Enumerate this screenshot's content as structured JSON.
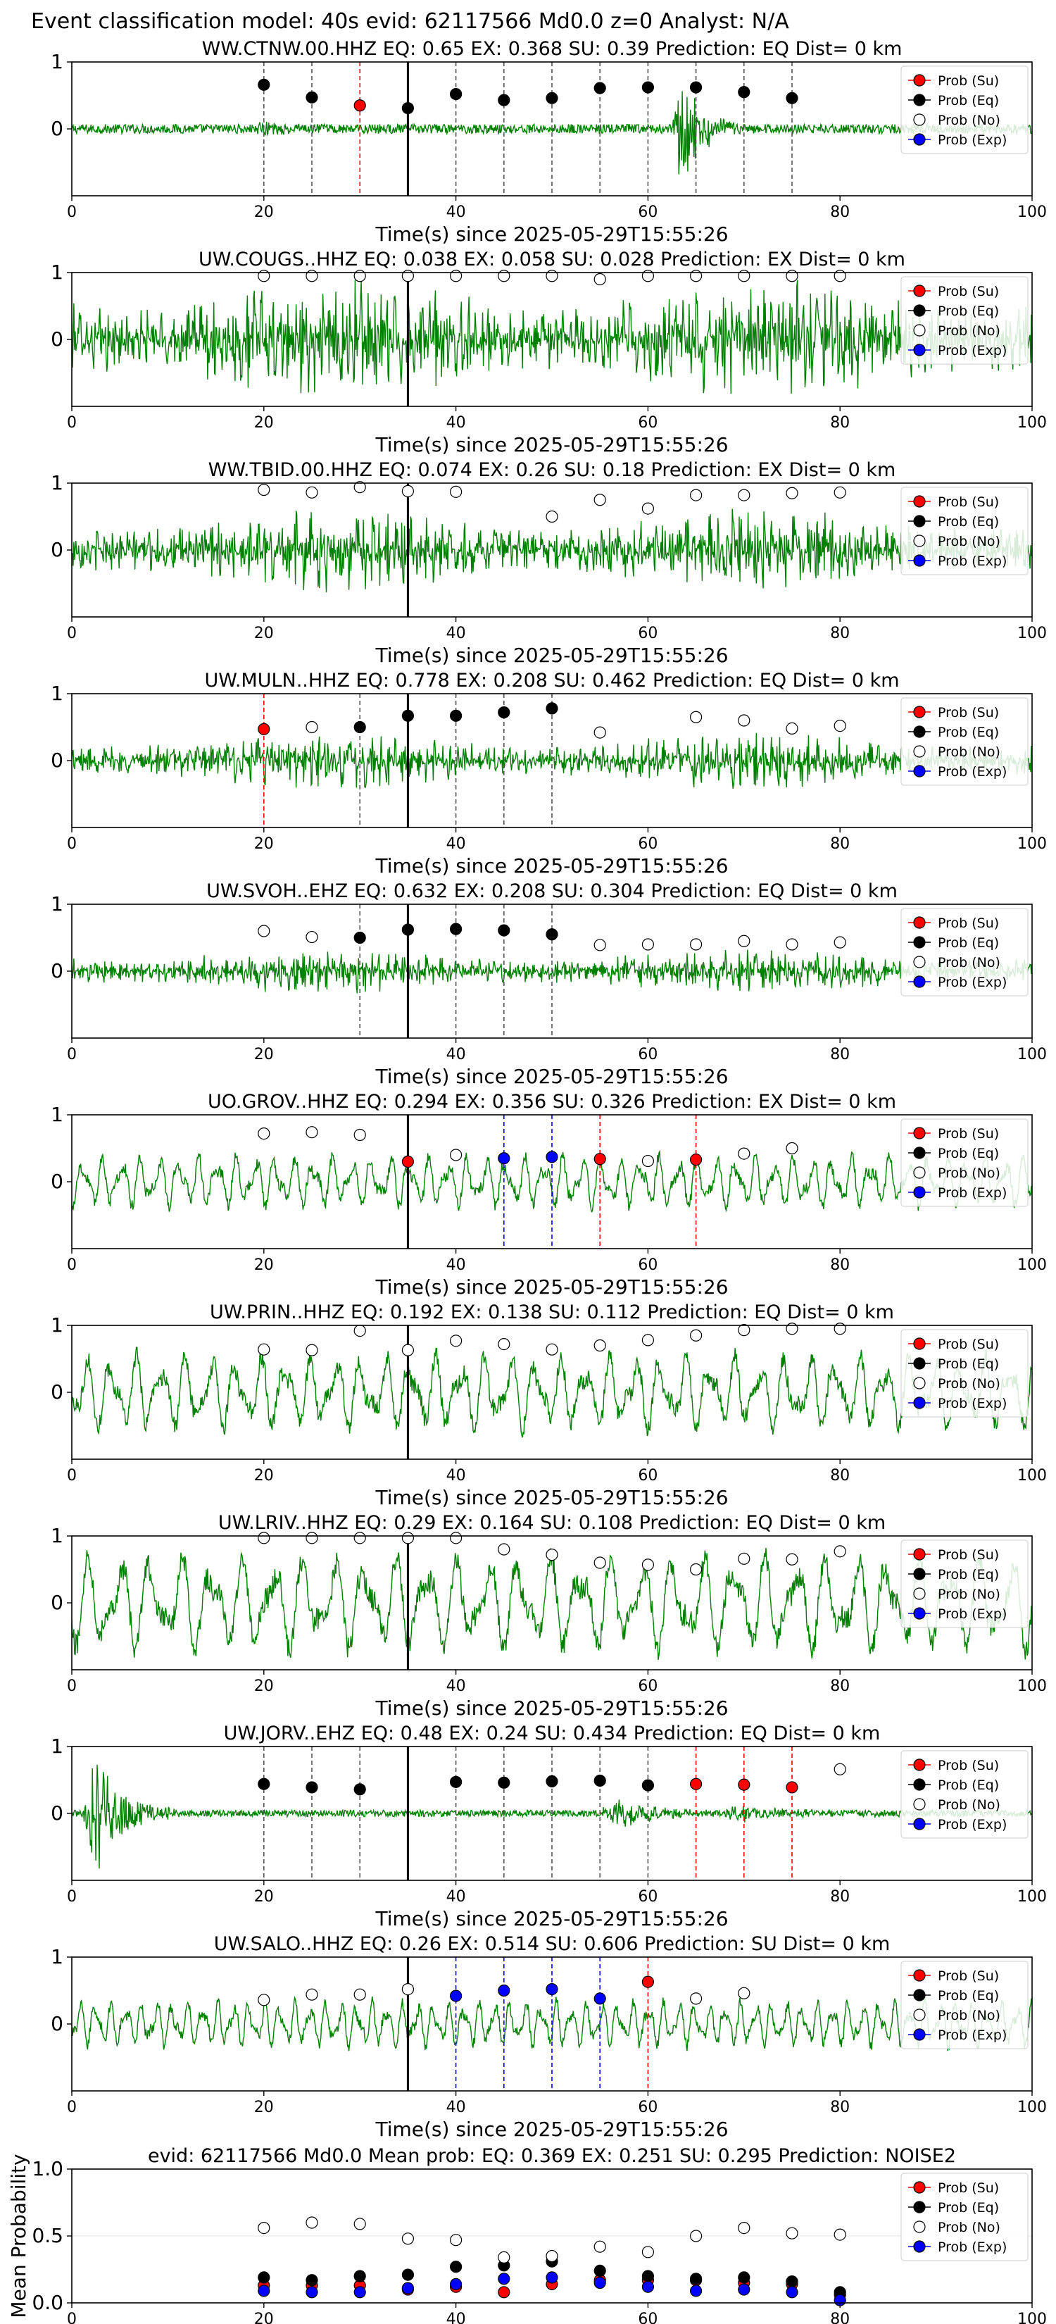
{
  "suptitle": "Event classification model: 40s evid: 62117566 Md0.0 z=0 Analyst: N/A",
  "colors": {
    "trace": "#008000",
    "su": "#ff0000",
    "eq": "#000000",
    "no": "#ffffff",
    "exp": "#0000ff"
  },
  "legend": [
    "Prob (Su)",
    "Prob (Eq)",
    "Prob (No)",
    "Prob (Exp)"
  ],
  "chart_data": [
    {
      "type": "line",
      "title": "WW.CTNW.00.HHZ   EQ: 0.65  EX: 0.368  SU: 0.39   Prediction: EQ    Dist= 0 km",
      "xlabel": "Time(s) since 2025-05-29T15:55:26",
      "ylabel": "",
      "xlim": [
        0,
        100
      ],
      "ylim": [
        -1,
        1
      ],
      "xticks": [
        0,
        20,
        40,
        60,
        80,
        100
      ],
      "yticks": [
        0,
        1
      ],
      "grid": false,
      "legend_position": "top-right",
      "trace": {
        "style": "burst",
        "amp": 0.07,
        "period": 1.5,
        "bursts": [
          [
            63.5,
            0.95,
            2.5
          ],
          [
            20,
            0.05,
            5
          ]
        ]
      },
      "points": [
        {
          "x": 20,
          "y": 0.66,
          "c": "eq"
        },
        {
          "x": 25,
          "y": 0.47,
          "c": "eq"
        },
        {
          "x": 30,
          "y": 0.35,
          "c": "su"
        },
        {
          "x": 35,
          "y": 0.31,
          "c": "eq"
        },
        {
          "x": 40,
          "y": 0.52,
          "c": "eq"
        },
        {
          "x": 45,
          "y": 0.43,
          "c": "eq"
        },
        {
          "x": 50,
          "y": 0.46,
          "c": "eq"
        },
        {
          "x": 55,
          "y": 0.61,
          "c": "eq"
        },
        {
          "x": 60,
          "y": 0.62,
          "c": "eq"
        },
        {
          "x": 65,
          "y": 0.62,
          "c": "eq"
        },
        {
          "x": 70,
          "y": 0.55,
          "c": "eq"
        },
        {
          "x": 75,
          "y": 0.46,
          "c": "eq"
        }
      ]
    },
    {
      "type": "line",
      "title": "UW.COUGS..HHZ   EQ: 0.038  EX: 0.058  SU: 0.028   Prediction: EX    Dist= 0 km",
      "xlabel": "Time(s) since 2025-05-29T15:55:26",
      "ylabel": "",
      "xlim": [
        0,
        100
      ],
      "ylim": [
        -1,
        1
      ],
      "xticks": [
        0,
        20,
        40,
        60,
        80,
        100
      ],
      "yticks": [
        0,
        1
      ],
      "grid": false,
      "legend_position": "top-right",
      "trace": {
        "style": "noise",
        "amp": 0.95,
        "period": 0.7
      },
      "points": [
        {
          "x": 20,
          "y": 0.95,
          "c": "no"
        },
        {
          "x": 25,
          "y": 0.95,
          "c": "no"
        },
        {
          "x": 30,
          "y": 0.95,
          "c": "no"
        },
        {
          "x": 35,
          "y": 0.95,
          "c": "no"
        },
        {
          "x": 40,
          "y": 0.95,
          "c": "no"
        },
        {
          "x": 45,
          "y": 0.95,
          "c": "no"
        },
        {
          "x": 50,
          "y": 0.95,
          "c": "no"
        },
        {
          "x": 55,
          "y": 0.9,
          "c": "no"
        },
        {
          "x": 60,
          "y": 0.95,
          "c": "no"
        },
        {
          "x": 65,
          "y": 0.95,
          "c": "no"
        },
        {
          "x": 70,
          "y": 0.95,
          "c": "no"
        },
        {
          "x": 75,
          "y": 0.95,
          "c": "no"
        },
        {
          "x": 80,
          "y": 0.95,
          "c": "no"
        }
      ]
    },
    {
      "type": "line",
      "title": "WW.TBID.00.HHZ   EQ: 0.074  EX: 0.26  SU: 0.18   Prediction: EX    Dist= 0 km",
      "xlabel": "Time(s) since 2025-05-29T15:55:26",
      "ylabel": "",
      "xlim": [
        0,
        100
      ],
      "ylim": [
        -1,
        1
      ],
      "xticks": [
        0,
        20,
        40,
        60,
        80,
        100
      ],
      "yticks": [
        0,
        1
      ],
      "grid": false,
      "legend_position": "top-right",
      "trace": {
        "style": "noise",
        "amp": 0.65,
        "period": 0.8
      },
      "points": [
        {
          "x": 20,
          "y": 0.9,
          "c": "no"
        },
        {
          "x": 25,
          "y": 0.86,
          "c": "no"
        },
        {
          "x": 30,
          "y": 0.94,
          "c": "no"
        },
        {
          "x": 35,
          "y": 0.88,
          "c": "no"
        },
        {
          "x": 40,
          "y": 0.87,
          "c": "no"
        },
        {
          "x": 50,
          "y": 0.5,
          "c": "no"
        },
        {
          "x": 55,
          "y": 0.75,
          "c": "no"
        },
        {
          "x": 60,
          "y": 0.62,
          "c": "no"
        },
        {
          "x": 65,
          "y": 0.82,
          "c": "no"
        },
        {
          "x": 70,
          "y": 0.82,
          "c": "no"
        },
        {
          "x": 75,
          "y": 0.85,
          "c": "no"
        },
        {
          "x": 80,
          "y": 0.86,
          "c": "no"
        }
      ]
    },
    {
      "type": "line",
      "title": "UW.MULN..HHZ   EQ: 0.778  EX: 0.208  SU: 0.462   Prediction: EQ    Dist= 0 km",
      "xlabel": "Time(s) since 2025-05-29T15:55:26",
      "ylabel": "",
      "xlim": [
        0,
        100
      ],
      "ylim": [
        -1,
        1
      ],
      "xticks": [
        0,
        20,
        40,
        60,
        80,
        100
      ],
      "yticks": [
        0,
        1
      ],
      "grid": false,
      "legend_position": "top-right",
      "trace": {
        "style": "noise",
        "amp": 0.45,
        "period": 0.8
      },
      "points": [
        {
          "x": 20,
          "y": 0.47,
          "c": "su"
        },
        {
          "x": 25,
          "y": 0.5,
          "c": "no"
        },
        {
          "x": 30,
          "y": 0.5,
          "c": "eq"
        },
        {
          "x": 35,
          "y": 0.67,
          "c": "eq"
        },
        {
          "x": 40,
          "y": 0.67,
          "c": "eq"
        },
        {
          "x": 45,
          "y": 0.72,
          "c": "eq"
        },
        {
          "x": 50,
          "y": 0.78,
          "c": "eq"
        },
        {
          "x": 55,
          "y": 0.42,
          "c": "no"
        },
        {
          "x": 65,
          "y": 0.65,
          "c": "no"
        },
        {
          "x": 70,
          "y": 0.6,
          "c": "no"
        },
        {
          "x": 75,
          "y": 0.48,
          "c": "no"
        },
        {
          "x": 80,
          "y": 0.52,
          "c": "no"
        }
      ]
    },
    {
      "type": "line",
      "title": "UW.SVOH..EHZ   EQ: 0.632  EX: 0.208  SU: 0.304   Prediction: EQ    Dist= 0 km",
      "xlabel": "Time(s) since 2025-05-29T15:55:26",
      "ylabel": "",
      "xlim": [
        0,
        100
      ],
      "ylim": [
        -1,
        1
      ],
      "xticks": [
        0,
        20,
        40,
        60,
        80,
        100
      ],
      "yticks": [
        0,
        1
      ],
      "grid": false,
      "legend_position": "top-right",
      "trace": {
        "style": "noise",
        "amp": 0.35,
        "period": 0.8
      },
      "points": [
        {
          "x": 20,
          "y": 0.6,
          "c": "no"
        },
        {
          "x": 25,
          "y": 0.51,
          "c": "no"
        },
        {
          "x": 30,
          "y": 0.5,
          "c": "eq"
        },
        {
          "x": 35,
          "y": 0.62,
          "c": "eq"
        },
        {
          "x": 40,
          "y": 0.63,
          "c": "eq"
        },
        {
          "x": 45,
          "y": 0.61,
          "c": "eq"
        },
        {
          "x": 50,
          "y": 0.55,
          "c": "eq"
        },
        {
          "x": 55,
          "y": 0.39,
          "c": "no"
        },
        {
          "x": 60,
          "y": 0.4,
          "c": "no"
        },
        {
          "x": 65,
          "y": 0.4,
          "c": "no"
        },
        {
          "x": 70,
          "y": 0.45,
          "c": "no"
        },
        {
          "x": 75,
          "y": 0.4,
          "c": "no"
        },
        {
          "x": 80,
          "y": 0.43,
          "c": "no"
        }
      ]
    },
    {
      "type": "line",
      "title": "UO.GROV..HHZ   EQ: 0.294  EX: 0.356  SU: 0.326   Prediction: EX    Dist= 0 km",
      "xlabel": "Time(s) since 2025-05-29T15:55:26",
      "ylabel": "",
      "xlim": [
        0,
        100
      ],
      "ylim": [
        -1,
        1
      ],
      "xticks": [
        0,
        20,
        40,
        60,
        80,
        100
      ],
      "yticks": [
        0,
        1
      ],
      "grid": false,
      "legend_position": "top-right",
      "trace": {
        "style": "wave",
        "amp": 0.45,
        "period": 2.0
      },
      "points": [
        {
          "x": 20,
          "y": 0.72,
          "c": "no"
        },
        {
          "x": 25,
          "y": 0.74,
          "c": "no"
        },
        {
          "x": 30,
          "y": 0.7,
          "c": "no"
        },
        {
          "x": 35,
          "y": 0.3,
          "c": "su"
        },
        {
          "x": 40,
          "y": 0.4,
          "c": "no"
        },
        {
          "x": 45,
          "y": 0.35,
          "c": "exp"
        },
        {
          "x": 50,
          "y": 0.37,
          "c": "exp"
        },
        {
          "x": 55,
          "y": 0.34,
          "c": "su"
        },
        {
          "x": 60,
          "y": 0.31,
          "c": "no"
        },
        {
          "x": 65,
          "y": 0.33,
          "c": "su"
        },
        {
          "x": 70,
          "y": 0.42,
          "c": "no"
        },
        {
          "x": 75,
          "y": 0.5,
          "c": "no"
        }
      ]
    },
    {
      "type": "line",
      "title": "UW.PRIN..HHZ   EQ: 0.192  EX: 0.138  SU: 0.112   Prediction: EQ    Dist= 0 km",
      "xlabel": "Time(s) since 2025-05-29T15:55:26",
      "ylabel": "",
      "xlim": [
        0,
        100
      ],
      "ylim": [
        -1,
        1
      ],
      "xticks": [
        0,
        20,
        40,
        60,
        80,
        100
      ],
      "yticks": [
        0,
        1
      ],
      "grid": false,
      "legend_position": "top-right",
      "trace": {
        "style": "wave",
        "amp": 0.65,
        "period": 2.6
      },
      "points": [
        {
          "x": 20,
          "y": 0.64,
          "c": "no"
        },
        {
          "x": 25,
          "y": 0.63,
          "c": "no"
        },
        {
          "x": 30,
          "y": 0.92,
          "c": "no"
        },
        {
          "x": 35,
          "y": 0.63,
          "c": "no"
        },
        {
          "x": 40,
          "y": 0.77,
          "c": "no"
        },
        {
          "x": 45,
          "y": 0.72,
          "c": "no"
        },
        {
          "x": 50,
          "y": 0.64,
          "c": "no"
        },
        {
          "x": 55,
          "y": 0.7,
          "c": "no"
        },
        {
          "x": 60,
          "y": 0.78,
          "c": "no"
        },
        {
          "x": 65,
          "y": 0.85,
          "c": "no"
        },
        {
          "x": 70,
          "y": 0.93,
          "c": "no"
        },
        {
          "x": 75,
          "y": 0.95,
          "c": "no"
        },
        {
          "x": 80,
          "y": 0.95,
          "c": "no"
        }
      ]
    },
    {
      "type": "line",
      "title": "UW.LRIV..HHZ   EQ: 0.29  EX: 0.164  SU: 0.108   Prediction: EQ    Dist= 0 km",
      "xlabel": "Time(s) since 2025-05-29T15:55:26",
      "ylabel": "",
      "xlim": [
        0,
        100
      ],
      "ylim": [
        -1,
        1
      ],
      "xticks": [
        0,
        20,
        40,
        60,
        80,
        100
      ],
      "yticks": [
        0,
        1
      ],
      "grid": false,
      "legend_position": "top-right",
      "trace": {
        "style": "wave",
        "amp": 0.85,
        "period": 3.2
      },
      "points": [
        {
          "x": 20,
          "y": 0.97,
          "c": "no"
        },
        {
          "x": 25,
          "y": 0.97,
          "c": "no"
        },
        {
          "x": 30,
          "y": 0.97,
          "c": "no"
        },
        {
          "x": 35,
          "y": 0.97,
          "c": "no"
        },
        {
          "x": 40,
          "y": 0.97,
          "c": "no"
        },
        {
          "x": 45,
          "y": 0.8,
          "c": "no"
        },
        {
          "x": 50,
          "y": 0.72,
          "c": "no"
        },
        {
          "x": 55,
          "y": 0.6,
          "c": "no"
        },
        {
          "x": 60,
          "y": 0.57,
          "c": "no"
        },
        {
          "x": 65,
          "y": 0.5,
          "c": "no"
        },
        {
          "x": 70,
          "y": 0.66,
          "c": "no"
        },
        {
          "x": 75,
          "y": 0.65,
          "c": "no"
        },
        {
          "x": 80,
          "y": 0.77,
          "c": "no"
        }
      ]
    },
    {
      "type": "line",
      "title": "UW.JORV..EHZ   EQ: 0.48  EX: 0.24  SU: 0.434   Prediction: EQ    Dist= 0 km",
      "xlabel": "Time(s) since 2025-05-29T15:55:26",
      "ylabel": "",
      "xlim": [
        0,
        100
      ],
      "ylim": [
        -1,
        1
      ],
      "xticks": [
        0,
        20,
        40,
        60,
        80,
        100
      ],
      "yticks": [
        0,
        1
      ],
      "grid": false,
      "legend_position": "top-right",
      "trace": {
        "style": "burst",
        "amp": 0.05,
        "period": 1.2,
        "bursts": [
          [
            2.5,
            0.9,
            3.5
          ],
          [
            57,
            0.18,
            6
          ],
          [
            70,
            0.1,
            6
          ]
        ]
      },
      "points": [
        {
          "x": 20,
          "y": 0.44,
          "c": "eq"
        },
        {
          "x": 25,
          "y": 0.39,
          "c": "eq"
        },
        {
          "x": 30,
          "y": 0.36,
          "c": "eq"
        },
        {
          "x": 40,
          "y": 0.47,
          "c": "eq"
        },
        {
          "x": 45,
          "y": 0.46,
          "c": "eq"
        },
        {
          "x": 50,
          "y": 0.48,
          "c": "eq"
        },
        {
          "x": 55,
          "y": 0.49,
          "c": "eq"
        },
        {
          "x": 60,
          "y": 0.42,
          "c": "eq"
        },
        {
          "x": 65,
          "y": 0.44,
          "c": "su"
        },
        {
          "x": 70,
          "y": 0.43,
          "c": "su"
        },
        {
          "x": 75,
          "y": 0.39,
          "c": "su"
        },
        {
          "x": 80,
          "y": 0.66,
          "c": "no"
        }
      ]
    },
    {
      "type": "line",
      "title": "UW.SALO..HHZ   EQ: 0.26  EX: 0.514  SU: 0.606   Prediction: SU    Dist= 0 km",
      "xlabel": "Time(s) since 2025-05-29T15:55:26",
      "ylabel": "",
      "xlim": [
        0,
        100
      ],
      "ylim": [
        -1,
        1
      ],
      "xticks": [
        0,
        20,
        40,
        60,
        80,
        100
      ],
      "yticks": [
        0,
        1
      ],
      "grid": false,
      "legend_position": "top-right",
      "trace": {
        "style": "wave",
        "amp": 0.4,
        "period": 1.6
      },
      "points": [
        {
          "x": 20,
          "y": 0.36,
          "c": "no"
        },
        {
          "x": 25,
          "y": 0.44,
          "c": "no"
        },
        {
          "x": 30,
          "y": 0.44,
          "c": "no"
        },
        {
          "x": 35,
          "y": 0.52,
          "c": "no"
        },
        {
          "x": 40,
          "y": 0.42,
          "c": "exp"
        },
        {
          "x": 45,
          "y": 0.5,
          "c": "exp"
        },
        {
          "x": 50,
          "y": 0.52,
          "c": "exp"
        },
        {
          "x": 55,
          "y": 0.38,
          "c": "exp"
        },
        {
          "x": 60,
          "y": 0.63,
          "c": "su"
        },
        {
          "x": 65,
          "y": 0.38,
          "c": "no"
        },
        {
          "x": 70,
          "y": 0.46,
          "c": "no"
        }
      ]
    },
    {
      "type": "scatter",
      "title": "evid: 62117566  Md0.0   Mean prob:   EQ: 0.369  EX: 0.251  SU: 0.295   Prediction: NOISE2",
      "xlabel": "",
      "ylabel": "Mean Probability",
      "xlim": [
        0,
        100
      ],
      "ylim": [
        0,
        1
      ],
      "xticks": [
        0,
        20,
        40,
        60,
        80,
        100
      ],
      "yticks": [
        0.0,
        0.5,
        1.0
      ],
      "grid": true,
      "legend_position": "top-right",
      "x": [
        20,
        25,
        30,
        35,
        40,
        45,
        50,
        55,
        60,
        65,
        70,
        75,
        80
      ],
      "series": [
        {
          "name": "Prob (Su)",
          "c": "su",
          "values": [
            0.13,
            0.13,
            0.13,
            0.1,
            0.12,
            0.08,
            0.14,
            0.17,
            0.17,
            0.17,
            0.15,
            0.14,
            0.06
          ]
        },
        {
          "name": "Prob (Eq)",
          "c": "eq",
          "values": [
            0.19,
            0.17,
            0.2,
            0.21,
            0.27,
            0.28,
            0.31,
            0.24,
            0.2,
            0.18,
            0.19,
            0.16,
            0.08
          ]
        },
        {
          "name": "Prob (No)",
          "c": "no",
          "values": [
            0.56,
            0.6,
            0.59,
            0.48,
            0.47,
            0.34,
            0.35,
            0.42,
            0.38,
            0.5,
            0.56,
            0.52,
            0.51
          ]
        },
        {
          "name": "Prob (Exp)",
          "c": "exp",
          "values": [
            0.09,
            0.08,
            0.08,
            0.11,
            0.14,
            0.18,
            0.19,
            0.15,
            0.12,
            0.09,
            0.1,
            0.08,
            0.02
          ]
        }
      ]
    }
  ]
}
